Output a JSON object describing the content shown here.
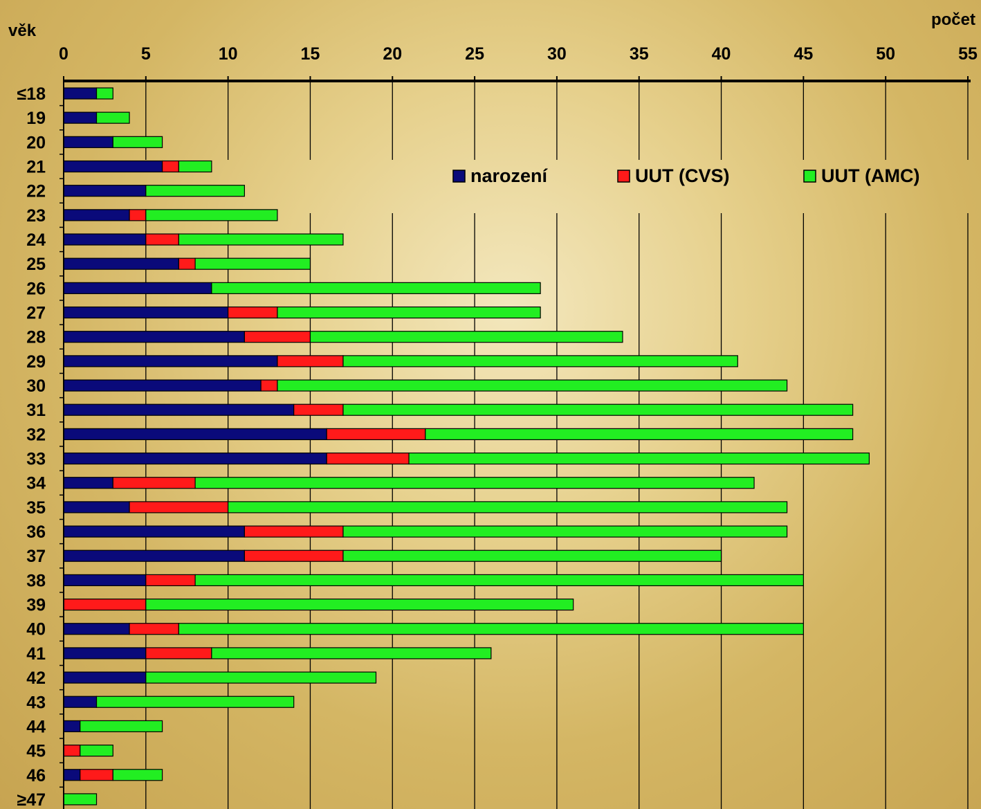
{
  "chart_data": {
    "type": "bar",
    "orientation": "horizontal",
    "stacked": true,
    "xlabel": "počet",
    "ylabel": "věk",
    "xlim": [
      0,
      55
    ],
    "x_ticks": [
      "0",
      "5",
      "10",
      "15",
      "20",
      "25",
      "30",
      "35",
      "40",
      "45",
      "50",
      "55"
    ],
    "grid": "vertical",
    "legend_position": "top-right",
    "categories": [
      "≤18",
      "19",
      "20",
      "21",
      "22",
      "23",
      "24",
      "25",
      "26",
      "27",
      "28",
      "29",
      "30",
      "31",
      "32",
      "33",
      "34",
      "35",
      "36",
      "37",
      "38",
      "39",
      "40",
      "41",
      "42",
      "43",
      "44",
      "45",
      "46",
      "≥47"
    ],
    "series": [
      {
        "name": "narození",
        "color": "#0a0a7a",
        "values": [
          2,
          2,
          3,
          6,
          5,
          4,
          5,
          7,
          9,
          10,
          11,
          13,
          12,
          14,
          16,
          16,
          3,
          4,
          11,
          11,
          5,
          0,
          4,
          5,
          5,
          2,
          1,
          0,
          1,
          0
        ]
      },
      {
        "name": "UUT (CVS)",
        "color": "#ff1a1a",
        "values": [
          0,
          0,
          0,
          1,
          0,
          1,
          2,
          1,
          0,
          3,
          4,
          4,
          1,
          3,
          6,
          5,
          5,
          6,
          6,
          6,
          3,
          5,
          3,
          4,
          0,
          0,
          0,
          1,
          2,
          0
        ]
      },
      {
        "name": "UUT (AMC)",
        "color": "#22ee22",
        "values": [
          1,
          2,
          3,
          2,
          6,
          8,
          10,
          7,
          20,
          16,
          19,
          24,
          31,
          31,
          26,
          28,
          34,
          34,
          27,
          23,
          37,
          26,
          38,
          17,
          14,
          12,
          5,
          2,
          3,
          2
        ]
      }
    ]
  }
}
